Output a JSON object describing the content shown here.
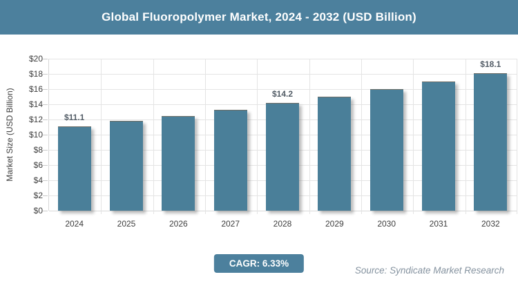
{
  "header": {
    "title": "Global Fluoropolymer Market, 2024 - 2032 (USD Billion)"
  },
  "footer": {
    "cagr_label": "CAGR: 6.33%",
    "source": "Source: Syndicate Market Research"
  },
  "colors": {
    "header_bg": "#4C809D",
    "bar": "#4A7F99",
    "badge_bg": "#4C809D",
    "gridline": "#E4E4E4",
    "axis_text": "#3D3D3D",
    "data_label_text": "#525C66",
    "source_text": "#84929F"
  },
  "chart_data": {
    "type": "bar",
    "title": "Global Fluoropolymer Market, 2024 - 2032 (USD Billion)",
    "categories": [
      "2024",
      "2025",
      "2026",
      "2027",
      "2028",
      "2029",
      "2030",
      "2031",
      "2032"
    ],
    "values": [
      11.1,
      11.8,
      12.5,
      13.3,
      14.2,
      15.0,
      16.0,
      17.0,
      18.1
    ],
    "bar_labels": [
      "$11.1",
      null,
      null,
      null,
      "$14.2",
      null,
      null,
      null,
      "$18.1"
    ],
    "xlabel": "",
    "ylabel": "Market Size (USD Billion)",
    "ylim": [
      0,
      20
    ],
    "ytick_step": 2,
    "ytick_prefix": "$",
    "grid": true,
    "legend": false
  }
}
